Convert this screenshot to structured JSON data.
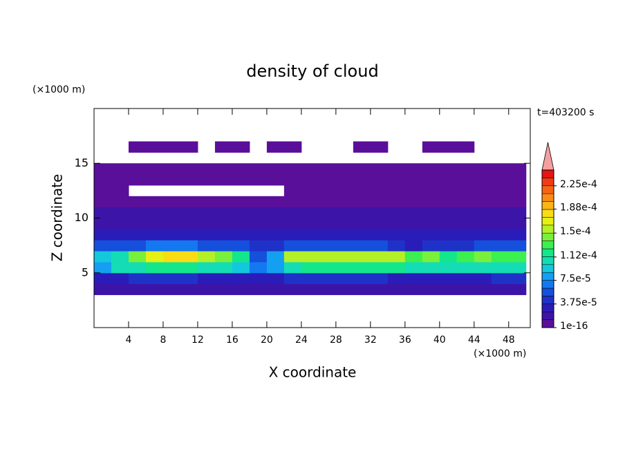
{
  "chart_data": {
    "type": "contour",
    "title": "density of cloud",
    "time_label": "t=403200 s",
    "x_label": "X coordinate",
    "y_label": "Z coordinate",
    "x_unit": "(×1000 m)",
    "y_unit": "(×1000 m)",
    "xlim": [
      0,
      50.5
    ],
    "ylim": [
      0,
      20
    ],
    "xticks": [
      4,
      8,
      12,
      16,
      20,
      24,
      28,
      32,
      36,
      40,
      44,
      48
    ],
    "yticks": [
      5,
      10,
      15
    ],
    "x": [
      1,
      3,
      5,
      7,
      9,
      11,
      13,
      15,
      17,
      19,
      21,
      23,
      25,
      27,
      29,
      31,
      33,
      35,
      37,
      39,
      41,
      43,
      45,
      47,
      49
    ],
    "y": [
      0.5,
      1.5,
      2.5,
      3.5,
      4.5,
      5.5,
      6.5,
      7.5,
      8.5,
      9.5,
      10.5,
      11.5,
      12.5,
      13.5,
      14.5,
      15.5,
      16.5,
      17.5,
      18.5,
      19.5
    ],
    "z": [
      [
        null,
        null,
        null,
        null,
        null,
        null,
        null,
        null,
        null,
        null,
        null,
        null,
        null,
        null,
        null,
        null,
        null,
        null,
        null,
        null,
        null,
        null,
        null,
        null,
        null
      ],
      [
        null,
        null,
        null,
        null,
        null,
        null,
        null,
        null,
        null,
        null,
        null,
        null,
        null,
        null,
        null,
        null,
        null,
        null,
        null,
        null,
        null,
        null,
        null,
        null,
        null
      ],
      [
        null,
        null,
        null,
        null,
        null,
        null,
        null,
        null,
        null,
        null,
        null,
        null,
        null,
        null,
        null,
        null,
        null,
        null,
        null,
        null,
        null,
        null,
        null,
        null,
        null
      ],
      [
        1.5e-05,
        1.5e-05,
        1.5e-05,
        1.5e-05,
        1.5e-05,
        1.5e-05,
        1.5e-05,
        1.5e-05,
        1.5e-05,
        1.5e-05,
        1.5e-05,
        1.5e-05,
        1.5e-05,
        1.5e-05,
        1.5e-05,
        1.5e-05,
        1.5e-05,
        1.5e-05,
        1.5e-05,
        1.5e-05,
        1.5e-05,
        1.5e-05,
        1.5e-05,
        1.5e-05,
        1.5e-05
      ],
      [
        3e-05,
        3.5e-05,
        4e-05,
        4e-05,
        4e-05,
        4e-05,
        3.5e-05,
        3.5e-05,
        3e-05,
        3e-05,
        3e-05,
        4e-05,
        4e-05,
        4e-05,
        4e-05,
        4e-05,
        4e-05,
        3.5e-05,
        3.5e-05,
        3.5e-05,
        3.5e-05,
        3.5e-05,
        3.5e-05,
        4e-05,
        4e-05
      ],
      [
        8e-05,
        0.0001,
        0.00011,
        0.00012,
        0.00012,
        0.00012,
        0.00011,
        0.0001,
        9e-05,
        7e-05,
        8e-05,
        0.00011,
        0.00012,
        0.00012,
        0.00012,
        0.000115,
        0.00012,
        0.000115,
        0.000105,
        0.00011,
        0.0001,
        0.000105,
        0.00011,
        0.00011,
        0.00011
      ],
      [
        9e-05,
        0.00011,
        0.00014,
        0.00017,
        0.00018,
        0.000175,
        0.00015,
        0.00014,
        0.00012,
        6e-05,
        8e-05,
        0.00015,
        0.00016,
        0.00016,
        0.000155,
        0.00015,
        0.00016,
        0.00015,
        0.00013,
        0.00014,
        0.00012,
        0.00013,
        0.00014,
        0.000135,
        0.00013
      ],
      [
        5e-05,
        5e-05,
        6e-05,
        7e-05,
        7e-05,
        7e-05,
        6e-05,
        5e-05,
        5e-05,
        4e-05,
        4e-05,
        5e-05,
        6e-05,
        6e-05,
        5.5e-05,
        5e-05,
        5.5e-05,
        4.5e-05,
        3.5e-05,
        4.5e-05,
        4e-05,
        4.5e-05,
        5e-05,
        5e-05,
        5e-05
      ],
      [
        3e-05,
        3e-05,
        3e-05,
        3e-05,
        3e-05,
        3e-05,
        3e-05,
        3e-05,
        3e-05,
        3e-05,
        3e-05,
        3e-05,
        3e-05,
        3e-05,
        3e-05,
        3e-05,
        2.5e-05,
        2.5e-05,
        2.5e-05,
        2.5e-05,
        2.5e-05,
        2.5e-05,
        2.5e-05,
        2.5e-05,
        2.5e-05
      ],
      [
        2e-05,
        2e-05,
        2e-05,
        2e-05,
        2e-05,
        2e-05,
        2e-05,
        2e-05,
        2e-05,
        2e-05,
        2e-05,
        2e-05,
        2e-05,
        2e-05,
        2e-05,
        2e-05,
        2e-05,
        2e-05,
        2e-05,
        2e-05,
        2e-05,
        2e-05,
        2e-05,
        2e-05,
        2e-05
      ],
      [
        1.5e-05,
        1.5e-05,
        1.5e-05,
        1.5e-05,
        1.5e-05,
        1.5e-05,
        1.5e-05,
        1.5e-05,
        1.5e-05,
        1.5e-05,
        1.5e-05,
        1.5e-05,
        1.5e-05,
        1.5e-05,
        1.5e-05,
        1.5e-05,
        1.5e-05,
        1.5e-05,
        1.5e-05,
        1.5e-05,
        1.5e-05,
        1.5e-05,
        1.5e-05,
        1.5e-05,
        1.5e-05
      ],
      [
        1.2e-05,
        1.2e-05,
        1e-05,
        1e-05,
        1e-05,
        1e-05,
        1e-05,
        1e-05,
        1e-05,
        1e-05,
        1e-05,
        1.2e-05,
        1.2e-05,
        1.2e-05,
        1.2e-05,
        1.2e-05,
        1.2e-05,
        1.2e-05,
        1.2e-05,
        1.2e-05,
        1.2e-05,
        1.2e-05,
        1.2e-05,
        1.2e-05,
        1.2e-05
      ],
      [
        1e-05,
        1e-05,
        null,
        null,
        null,
        null,
        null,
        null,
        null,
        null,
        null,
        8e-06,
        8e-06,
        8e-06,
        8e-06,
        8e-06,
        8e-06,
        8e-06,
        8e-06,
        8e-06,
        8e-06,
        8e-06,
        8e-06,
        8e-06,
        8e-06
      ],
      [
        5e-06,
        5e-06,
        5e-06,
        5e-06,
        5e-06,
        5e-06,
        5e-06,
        5e-06,
        5e-06,
        5e-06,
        5e-06,
        5e-06,
        5e-06,
        5e-06,
        5e-06,
        5e-06,
        5e-06,
        5e-06,
        5e-06,
        5e-06,
        5e-06,
        5e-06,
        5e-06,
        5e-06,
        5e-06
      ],
      [
        5e-06,
        5e-06,
        5e-06,
        5e-06,
        5e-06,
        5e-06,
        5e-06,
        5e-06,
        5e-06,
        5e-06,
        5e-06,
        5e-06,
        5e-06,
        5e-06,
        5e-06,
        5e-06,
        5e-06,
        5e-06,
        5e-06,
        5e-06,
        5e-06,
        5e-06,
        5e-06,
        5e-06,
        5e-06
      ],
      [
        null,
        null,
        null,
        null,
        null,
        null,
        null,
        null,
        null,
        null,
        null,
        null,
        null,
        null,
        null,
        null,
        null,
        null,
        null,
        null,
        null,
        null,
        null,
        null,
        null
      ],
      [
        null,
        null,
        5e-06,
        5e-06,
        5e-06,
        5e-06,
        null,
        5e-06,
        5e-06,
        null,
        5e-06,
        5e-06,
        null,
        null,
        null,
        5e-06,
        5e-06,
        null,
        null,
        5e-06,
        5e-06,
        5e-06,
        null,
        null,
        null
      ],
      [
        null,
        null,
        null,
        null,
        null,
        null,
        null,
        null,
        null,
        null,
        null,
        null,
        null,
        null,
        null,
        null,
        null,
        null,
        null,
        null,
        null,
        null,
        null,
        null,
        null
      ],
      [
        null,
        null,
        null,
        null,
        null,
        null,
        null,
        null,
        null,
        null,
        null,
        null,
        null,
        null,
        null,
        null,
        null,
        null,
        null,
        null,
        null,
        null,
        null,
        null,
        null
      ],
      [
        null,
        null,
        null,
        null,
        null,
        null,
        null,
        null,
        null,
        null,
        null,
        null,
        null,
        null,
        null,
        null,
        null,
        null,
        null,
        null,
        null,
        null,
        null,
        null,
        null
      ]
    ],
    "clim": [
      1e-16,
      0.00025
    ],
    "levels": [
      1e-16,
      1.25e-05,
      2.5e-05,
      3.75e-05,
      5e-05,
      6.25e-05,
      7.5e-05,
      8.75e-05,
      0.0001,
      0.0001125,
      0.000125,
      0.0001375,
      0.00015,
      0.0001625,
      0.000175,
      0.0001875,
      0.0002,
      0.0002125,
      0.000225,
      0.0002375
    ],
    "colors": [
      "#5a0f9b",
      "#3c14a8",
      "#2a1cb8",
      "#1e32c8",
      "#1450dc",
      "#1478f0",
      "#14a0f0",
      "#14c8dc",
      "#14dcb4",
      "#14e68c",
      "#3cf050",
      "#78f03c",
      "#b4f028",
      "#e6f014",
      "#fadc14",
      "#fab414",
      "#fa8c14",
      "#f56414",
      "#f03c14",
      "#e61414"
    ],
    "overflow_color": "#f5a0a0",
    "colorbar_ticks": [
      {
        "value": 1e-16,
        "label": "1e-16"
      },
      {
        "value": 3.75e-05,
        "label": "3.75e-5"
      },
      {
        "value": 7.5e-05,
        "label": "7.5e-5"
      },
      {
        "value": 0.000112,
        "label": "1.12e-4"
      },
      {
        "value": 0.00015,
        "label": "1.5e-4"
      },
      {
        "value": 0.000188,
        "label": "1.88e-4"
      },
      {
        "value": 0.000225,
        "label": "2.25e-4"
      }
    ]
  }
}
